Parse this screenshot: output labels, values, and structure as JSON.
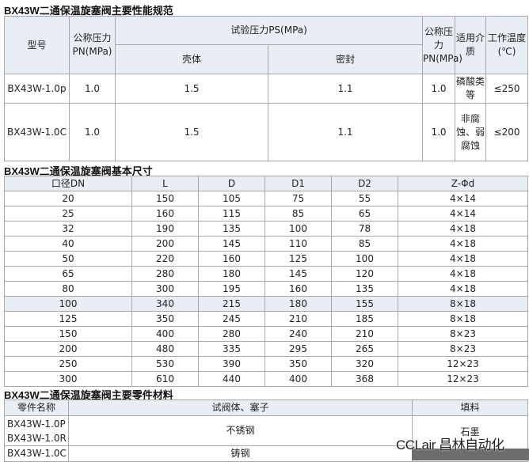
{
  "spec": {
    "title": "BX43W二通保温旋塞阀主要性能规范",
    "headers": {
      "model": "型号",
      "pn": "公称压力PN(MPa)",
      "test": "试验压力PS(MPa)",
      "shell": "壳体",
      "seal": "密封",
      "pn2": "公称压力PN(MPa)",
      "medium": "适用介质",
      "temp": "工作温度(℃)"
    },
    "rows": [
      {
        "model": "BX43W-1.0p",
        "pn": "1.0",
        "shell": "1.5",
        "seal": "1.1",
        "pn2": "1.0",
        "medium": "磷酸类等",
        "temp": "≤250"
      },
      {
        "model": "BX43W-1.0C",
        "pn": "1.0",
        "shell": "1.5",
        "seal": "1.1",
        "pn2": "1.0",
        "medium": "非腐蚀、弱腐蚀",
        "temp": "≤200"
      }
    ]
  },
  "dims": {
    "title": "BX43W二通保温旋塞阀基本尺寸",
    "headers": [
      "口径DN",
      "L",
      "D",
      "D1",
      "D2",
      "Z-Φd"
    ],
    "rows": [
      [
        "20",
        "150",
        "105",
        "75",
        "55",
        "4×14"
      ],
      [
        "25",
        "160",
        "115",
        "85",
        "65",
        "4×14"
      ],
      [
        "32",
        "190",
        "135",
        "100",
        "78",
        "4×18"
      ],
      [
        "40",
        "200",
        "145",
        "110",
        "85",
        "4×18"
      ],
      [
        "50",
        "220",
        "160",
        "125",
        "100",
        "4×18"
      ],
      [
        "65",
        "280",
        "180",
        "145",
        "120",
        "4×18"
      ],
      [
        "80",
        "300",
        "195",
        "160",
        "135",
        "4×18"
      ],
      [
        "100",
        "340",
        "215",
        "180",
        "155",
        "8×18"
      ],
      [
        "125",
        "350",
        "245",
        "210",
        "185",
        "8×18"
      ],
      [
        "150",
        "400",
        "280",
        "240",
        "210",
        "8×23"
      ],
      [
        "200",
        "480",
        "335",
        "295",
        "265",
        "8×23"
      ],
      [
        "250",
        "530",
        "390",
        "350",
        "320",
        "12×23"
      ],
      [
        "300",
        "610",
        "440",
        "400",
        "368",
        "12×23"
      ]
    ],
    "highlighted_row": "100"
  },
  "materials": {
    "title": "BX43W二通保温旋塞阀主要零件材料",
    "headers": [
      "零件名称",
      "试阀体、塞子",
      "填料"
    ],
    "rows": [
      {
        "models": [
          "BX43W-1.0P",
          "BX43W-1.0R"
        ],
        "body": "不锈钢",
        "packing": "石墨"
      },
      {
        "models": [
          "BX43W-1.0C"
        ],
        "body": "铸钢"
      }
    ]
  },
  "watermark": "CCLair 昌林自动化",
  "colors": {
    "header_bg": "#e9eef4",
    "border": "#a8a8a8"
  }
}
